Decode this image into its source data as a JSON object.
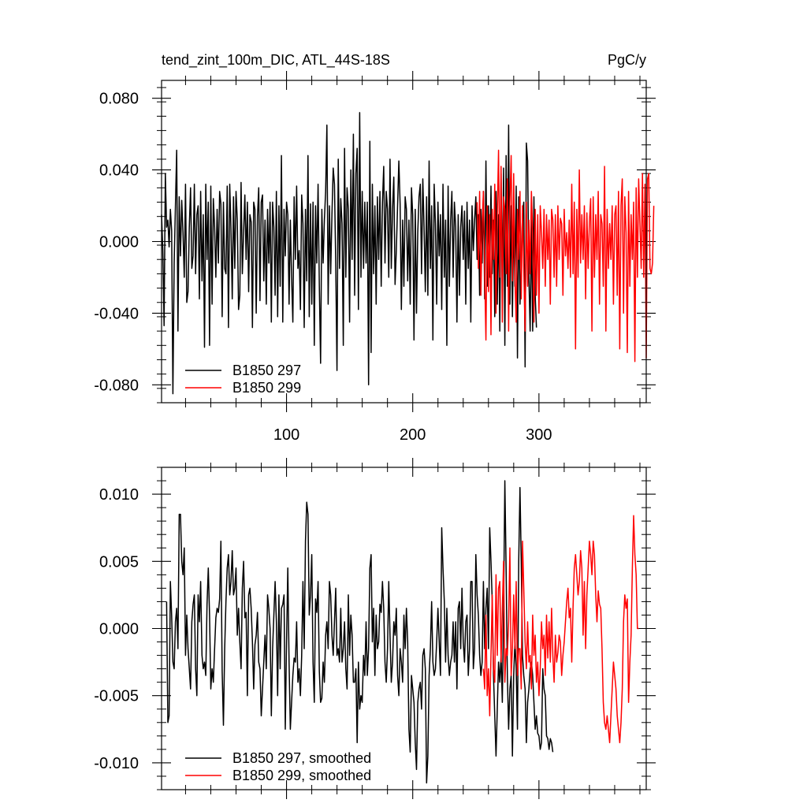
{
  "figure": {
    "title_left": "tend_zint_100m_DIC, ATL_44S-18S",
    "title_right": "PgC/y"
  },
  "chart_data": [
    {
      "type": "line",
      "title": "tend_zint_100m_DIC, ATL_44S-18S",
      "units": "PgC/y",
      "xlim": [
        1,
        385
      ],
      "ylim": [
        -0.09,
        0.09
      ],
      "xticks": [
        100,
        200,
        300
      ],
      "xtick_labels": [
        "100",
        "200",
        "300"
      ],
      "yticks": [
        -0.08,
        -0.04,
        0.0,
        0.04,
        0.08
      ],
      "ytick_labels": [
        "-0.080",
        "-0.040",
        "0.000",
        "0.040",
        "0.080"
      ],
      "legend": {
        "placement": "bottom-left",
        "entries": [
          "B1850 297",
          "B1850 299"
        ]
      },
      "series": [
        {
          "name": "B1850 297",
          "color": "#000000",
          "x_start": 1,
          "values": [
            0.015,
            -0.005,
            -0.047,
            0.038,
            0.008,
            0.012,
            -0.003,
            0.018,
            0.006,
            -0.085,
            -0.012,
            0.02,
            0.051,
            -0.05,
            0.025,
            -0.008,
            0.023,
            0.005,
            -0.02,
            0.032,
            -0.034,
            -0.028,
            0.008,
            0.03,
            -0.015,
            -0.008,
            0.032,
            -0.018,
            0.015,
            0.02,
            -0.032,
            0.028,
            -0.022,
            0.015,
            -0.059,
            0.032,
            -0.01,
            0.022,
            -0.058,
            0.031,
            -0.035,
            0.024,
            0.008,
            -0.02,
            0.018,
            -0.012,
            0.028,
            0.021,
            -0.042,
            0.022,
            -0.015,
            -0.018,
            0.031,
            -0.048,
            0.032,
            0.007,
            -0.032,
            0.025,
            -0.015,
            0.028,
            0.012,
            -0.038,
            -0.03,
            0.033,
            -0.018,
            0.005,
            0.026,
            -0.01,
            0.022,
            -0.028,
            0.015,
            0.011,
            -0.048,
            0.022,
            0.018,
            -0.04,
            0.014,
            0.03,
            -0.033,
            0.022,
            0.026,
            -0.022,
            0.012,
            -0.035,
            0.018,
            -0.012,
            0.022,
            -0.045,
            0.022,
            0.008,
            -0.03,
            0.028,
            -0.042,
            0.02,
            -0.025,
            0.048,
            -0.045,
            0.018,
            -0.008,
            0.022,
            0.015,
            -0.035,
            0.012,
            -0.02,
            -0.045,
            0.025,
            -0.01,
            0.031,
            -0.015,
            -0.005,
            -0.038,
            0.026,
            0.01,
            -0.048,
            0.018,
            -0.022,
            0.048,
            -0.042,
            0.021,
            -0.035,
            0.022,
            -0.058,
            0.02,
            -0.012,
            0.032,
            -0.025,
            -0.068,
            0.018,
            -0.012,
            0.012,
            0.028,
            0.065,
            -0.035,
            0.02,
            -0.018,
            0.015,
            0.041,
            0.032,
            -0.012,
            -0.072,
            0.046,
            -0.015,
            0.024,
            0.01,
            -0.058,
            0.052,
            -0.02,
            0.03,
            0.018,
            -0.045,
            0.04,
            -0.01,
            0.06,
            -0.03,
            0.038,
            0.052,
            -0.038,
            0.072,
            -0.02,
            0.028,
            -0.015,
            0.022,
            -0.012,
            0.022,
            -0.08,
            0.056,
            -0.062,
            0.032,
            -0.018,
            0.02,
            -0.035,
            0.025,
            -0.01,
            0.028,
            -0.025,
            0.022,
            0.042,
            -0.012,
            0.028,
            0.018,
            -0.02,
            0.046,
            -0.015,
            0.018,
            0.036,
            -0.024,
            -0.005,
            0.02,
            0.045,
            0.021,
            -0.038,
            0.012,
            -0.025,
            0.025,
            0.018,
            -0.022,
            0.012,
            -0.035,
            0.03,
            0.015,
            -0.055,
            0.018,
            -0.04,
            0.005,
            0.025,
            0.032,
            -0.018,
            0.035,
            0.008,
            -0.028,
            0.025,
            -0.03,
            0.045,
            -0.015,
            0.02,
            -0.055,
            0.032,
            0.01,
            -0.035,
            0.022,
            -0.008,
            0.015,
            -0.038,
            0.032,
            -0.02,
            0.012,
            -0.058,
            0.031,
            -0.025,
            0.012,
            0.028,
            -0.02,
            0.022,
            0.008,
            -0.045,
            0.015,
            -0.03,
            0.008,
            0.02,
            -0.01,
            0.017,
            -0.035,
            0.022,
            -0.015,
            0.012,
            -0.045,
            0.02,
            -0.005,
            0.012,
            0.025,
            -0.01,
            0.015,
            -0.03,
            0.018,
            -0.012,
            0.028,
            -0.032,
            0.045,
            -0.025,
            0.02,
            -0.02,
            0.031,
            -0.018,
            0.012,
            -0.042,
            0.028,
            -0.035,
            0.015,
            -0.05,
            0.038,
            -0.022,
            0.041,
            -0.058,
            0.048,
            -0.025,
            0.065,
            -0.035,
            0.02,
            -0.042,
            0.012,
            -0.025,
            0.031,
            -0.065,
            0.025,
            -0.035,
            -0.012,
            0.015,
            0.022,
            -0.07,
            0.055,
            0.045,
            -0.02,
            -0.05,
            0.012,
            -0.05,
            0.025,
            -0.03,
            -0.048
          ],
          "linewidth": 1.5
        },
        {
          "name": "B1850 299",
          "color": "#ff0000",
          "x_start": 251,
          "values": [
            0.022,
            -0.015,
            0.028,
            -0.03,
            0.01,
            0.028,
            -0.018,
            -0.055,
            0.02,
            -0.028,
            0.015,
            -0.052,
            0.018,
            -0.01,
            0.032,
            -0.04,
            0.015,
            0.051,
            -0.02,
            0.042,
            -0.045,
            0.025,
            0.018,
            -0.018,
            0.035,
            -0.05,
            0.022,
            0.048,
            -0.022,
            0.038,
            -0.02,
            -0.045,
            0.018,
            -0.01,
            0.028,
            -0.032,
            0.02,
            -0.015,
            -0.05,
            0.022,
            -0.025,
            0.012,
            -0.018,
            0.028,
            0.005,
            -0.045,
            0.018,
            -0.03,
            0.015,
            -0.04,
            0.02,
            0.005,
            -0.015,
            0.018,
            -0.025,
            0.015,
            -0.01,
            0.012,
            -0.035,
            0.018,
            0.012,
            -0.02,
            0.015,
            -0.025,
            0.02,
            -0.01,
            0.013,
            0.01,
            -0.03,
            0.018,
            -0.008,
            0.005,
            -0.015,
            0.012,
            -0.02,
            0.032,
            -0.018,
            0.022,
            -0.06,
            0.018,
            -0.02,
            0.04,
            -0.012,
            0.015,
            -0.01,
            0.02,
            -0.032,
            0.016,
            -0.015,
            0.011,
            0.024,
            -0.05,
            0.025,
            -0.02,
            0.015,
            -0.01,
            0.028,
            -0.035,
            0.015,
            0.01,
            -0.025,
            0.042,
            -0.05,
            0.018,
            -0.015,
            0.01,
            -0.01,
            0.02,
            -0.035,
            0.015,
            0.02,
            -0.03,
            0.028,
            -0.06,
            0.02,
            0.035,
            -0.04,
            0.025,
            0.005,
            -0.062,
            0.028,
            -0.025,
            0.015,
            -0.01,
            0.022,
            -0.067,
            0.03,
            -0.02,
            0.035,
            0.01,
            -0.015,
            0.038,
            -0.02,
            0.032,
            -0.065,
            0.035,
            0.038,
            -0.015,
            -0.018,
            -0.012,
            0.02
          ],
          "linewidth": 1.5
        }
      ]
    },
    {
      "type": "line",
      "title": "",
      "xlim": [
        1,
        385
      ],
      "ylim": [
        -0.012,
        0.012
      ],
      "xticks": [
        100,
        200,
        300
      ],
      "yticks": [
        -0.01,
        -0.005,
        0.0,
        0.005,
        0.01
      ],
      "ytick_labels": [
        "-0.010",
        "-0.005",
        "0.000",
        "0.005",
        "0.010"
      ],
      "legend": {
        "placement": "bottom-left",
        "entries": [
          "B1850 297, smoothed",
          "B1850 299, smoothed"
        ]
      },
      "series": [
        {
          "name": "B1850 297, smoothed",
          "color": "#000000",
          "x_start": 5,
          "values": [
            0.002,
            -0.007,
            -0.0065,
            0.0035,
            0.001,
            -0.0025,
            -0.003,
            0.0005,
            0.0015,
            -0.0015,
            0.0085,
            0.0085,
            0.005,
            0.004,
            0.006,
            -0.002,
            0.001,
            -0.0015,
            -0.003,
            -0.0045,
            0.0005,
            0.0018,
            0.0025,
            -0.003,
            -0.005,
            0.0025,
            0.0005,
            0.0035,
            -0.002,
            -0.003,
            -0.0025,
            -0.0035,
            0.0018,
            0.0045,
            0.001,
            -0.0045,
            -0.003,
            -0.004,
            -0.0015,
            0.0008,
            0.0015,
            0.0012,
            0.0022,
            0.0065,
            -0.0032,
            -0.0072,
            -0.0015,
            0.002,
            0.0045,
            0.0055,
            0.0025,
            0.0035,
            0.0058,
            0.0025,
            0.003,
            0.0045,
            -0.0005,
            0.0015,
            -0.001,
            -0.003,
            0.003,
            0.005,
            0.0008,
            0.0012,
            -0.005,
            0.0025,
            0.003,
            0.0015,
            -0.001,
            -0.0045,
            -0.0012,
            -0.0005,
            0.0012,
            -0.0025,
            -0.003,
            -0.0065,
            -0.0045,
            -0.0025,
            -0.0005,
            -0.003,
            0.0025,
            0.0015,
            0.0,
            -0.0065,
            -0.0015,
            0.001,
            0.0035,
            0.0005,
            -0.005,
            0.0025,
            -0.003,
            0.0015,
            0.0018,
            0.0025,
            -0.0075,
            -0.001,
            0.0045,
            -0.0025,
            -0.0075,
            -0.0055,
            -0.0035,
            -0.0022,
            -0.0025,
            0.0005,
            -0.004,
            -0.003,
            -0.005,
            -0.002,
            0.0035,
            -0.0015,
            0.0065,
            0.0094,
            0.0085,
            0.001,
            0.0025,
            0.0055,
            -0.0025,
            -0.0055,
            0.0022,
            0.0012,
            0.0035,
            -0.0032,
            -0.0055,
            -0.0052,
            -0.0025,
            -0.004,
            -0.0005,
            0.0005,
            -0.0015,
            0.0035,
            0.0025,
            -0.0005,
            -0.002,
            0.0005,
            0.003,
            -0.002,
            -0.0015,
            -0.0025,
            0.0015,
            -0.0025,
            -0.0015,
            0.0005,
            -0.003,
            -0.0045,
            0.0025,
            -0.002,
            0.001,
            -0.0005,
            -0.004,
            -0.004,
            -0.003,
            -0.0085,
            -0.0025,
            -0.006,
            -0.005,
            -0.0055,
            -0.002,
            -0.0035,
            0.0005,
            -0.0035,
            -0.0015,
            0.0045,
            0.0055,
            -0.001,
            0.0015,
            -0.0035,
            0.001,
            -0.0015,
            -0.001,
            0.0018,
            0.0012,
            0.0035,
            0.0015,
            -0.0025,
            -0.004,
            -0.0015,
            0.0035,
            -0.0005,
            -0.004,
            -0.0025,
            0.0005,
            -0.0005,
            0.0015,
            -0.0035,
            -0.005,
            -0.0015,
            -0.0025,
            -0.004,
            0.001,
            -0.0015,
            0.0015,
            -0.001,
            -0.0075,
            -0.0092,
            -0.0035,
            -0.0045,
            -0.0055,
            -0.0085,
            -0.0105,
            -0.0055,
            -0.0045,
            -0.004,
            -0.006,
            -0.002,
            -0.0015,
            -0.003,
            -0.0115,
            -0.0095,
            -0.0035,
            -0.0015,
            0.002,
            -0.0025,
            -0.0035,
            -0.003,
            -0.001,
            0.0015,
            -0.001,
            -0.0035,
            0.0075,
            0.0045,
            0.002,
            -0.0025,
            0.0015,
            -0.002,
            -0.0035,
            -0.0025,
            -0.002,
            0.0005,
            -0.0025,
            0.0005,
            -0.0045,
            0.0015,
            0.002,
            -0.0015,
            0.003,
            -0.001,
            -0.0025,
            0.0005,
            0.001,
            -0.0035,
            -0.0015,
            0.0035,
            0.0035,
            -0.003,
            -0.0015,
            0.0055,
            0.0025,
            0.001,
            -0.002,
            -0.0035,
            -0.0025,
            0.0035,
            -0.0015,
            0.0015,
            0.003,
            -0.0015,
            0.0075,
            0.005,
            0.002,
            -0.0035,
            -0.0065,
            -0.0095,
            -0.006,
            -0.0025,
            -0.004,
            -0.002,
            -0.0055,
            0.0015,
            0.011,
            0.0045,
            -0.0035,
            -0.0075,
            -0.0045,
            -0.0035,
            -0.0095,
            -0.0035,
            -0.001,
            -0.003,
            -0.0075,
            0.005,
            0.0105,
            0.005,
            -0.002,
            -0.0035,
            -0.0045,
            -0.0085,
            -0.0055,
            -0.0045,
            -0.003,
            -0.0025,
            -0.0035,
            -0.0055,
            -0.0075,
            -0.0065,
            -0.0078,
            -0.008,
            -0.009,
            -0.0085,
            -0.003,
            -0.0045,
            -0.005,
            -0.008,
            -0.0082,
            -0.009,
            -0.0082,
            -0.0085,
            -0.0092
          ],
          "linewidth": 1.5
        },
        {
          "name": "B1850 299, smoothed",
          "color": "#ff0000",
          "x_start": 256,
          "values": [
            -0.003,
            -0.0045,
            0.001,
            -0.005,
            -0.003,
            -0.0065,
            -0.002,
            0.0025,
            -0.003,
            -0.004,
            0.004,
            -0.002,
            0.003,
            0.0035,
            -0.0025,
            0.0015,
            0.005,
            -0.004,
            -0.0015,
            -0.002,
            0.0005,
            0.006,
            -0.0035,
            -0.0015,
            0.0025,
            -0.0015,
            0.0035,
            -0.0035,
            -0.0015,
            -0.0015,
            -0.0045,
            0.0065,
            0.003,
            -0.001,
            -0.003,
            0.0005,
            -0.0025,
            -0.002,
            -0.0045,
            0.001,
            -0.002,
            -0.0005,
            -0.004,
            -0.0025,
            -0.005,
            -0.003,
            0.0005,
            -0.0015,
            -0.0005,
            -0.0035,
            0.001,
            -0.0022,
            0.0005,
            -0.0025,
            0.0015,
            -0.002,
            -0.004,
            -0.0005,
            -0.0025,
            -0.0018,
            -0.0005,
            -0.001,
            -0.0035,
            -0.002,
            -0.001,
            0.0005,
            0.002,
            0.003,
            0.0008,
            0.0015,
            -0.0025,
            0.0015,
            0.0045,
            0.0055,
            0.004,
            0.0025,
            0.0035,
            0.0058,
            0.0045,
            -0.0005,
            0.0035,
            -0.0015,
            0.0025,
            0.0045,
            0.0065,
            0.0055,
            0.004,
            0.0065,
            0.0055,
            0.0025,
            0.0005,
            0.0028,
            0.0018,
            0.0015,
            -0.0015,
            -0.0055,
            -0.007,
            -0.0075,
            -0.0065,
            -0.0075,
            -0.0085,
            -0.0065,
            -0.0045,
            -0.0025,
            -0.0035,
            -0.0045,
            -0.0065,
            -0.0075,
            -0.0085,
            -0.007,
            -0.0045,
            0.0005,
            0.0025,
            0.0015,
            0.0022,
            -0.0055,
            -0.0025,
            -0.0005,
            0.0045,
            0.0084,
            0.0055,
            0.004,
            0.0,
            0.0
          ],
          "linewidth": 1.5
        }
      ]
    }
  ]
}
